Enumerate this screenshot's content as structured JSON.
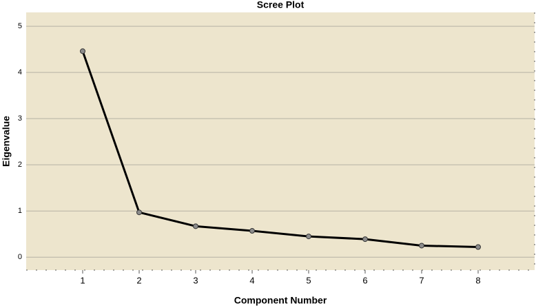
{
  "chart_data": {
    "type": "line",
    "title": "Scree Plot",
    "x_label": "Component Number",
    "y_label": "Eigenvalue",
    "x": [
      1,
      2,
      3,
      4,
      5,
      6,
      7,
      8
    ],
    "series": [
      {
        "color": "#000000",
        "values": [
          4.46,
          0.97,
          0.67,
          0.57,
          0.45,
          0.39,
          0.25,
          0.22
        ]
      }
    ],
    "xlim": [
      0,
      9
    ],
    "xticks": [
      1,
      2,
      3,
      4,
      5,
      6,
      7,
      8
    ],
    "ylim": [
      -0.28,
      5.3
    ],
    "yticks": [
      0,
      1,
      2,
      3,
      4,
      5
    ],
    "grid": true
  }
}
